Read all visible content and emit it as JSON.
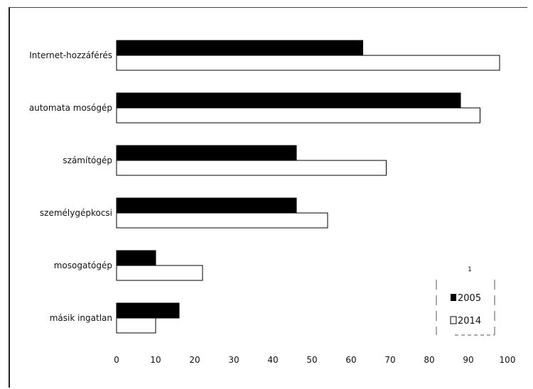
{
  "chart_data": {
    "type": "bar",
    "orientation": "horizontal",
    "categories": [
      "Internet-hozzáférés",
      "automata mosógép",
      "számítógép",
      "személygépkocsi",
      "mosogatógép",
      "másik ingatlan"
    ],
    "series": [
      {
        "name": "2005",
        "values": [
          63,
          88,
          46,
          46,
          10,
          16
        ],
        "color": "#000000"
      },
      {
        "name": "2014",
        "values": [
          98,
          93,
          69,
          54,
          22,
          10
        ],
        "color": "#ffffff"
      }
    ],
    "xlim": [
      0,
      100
    ],
    "xticks": [
      "0",
      "10",
      "20",
      "30",
      "40",
      "50",
      "60",
      "70",
      "80",
      "90",
      "100"
    ],
    "grid": false,
    "legend_position": "bottom-right",
    "legend_marker": "1",
    "title": "",
    "xlabel": "",
    "ylabel": ""
  }
}
